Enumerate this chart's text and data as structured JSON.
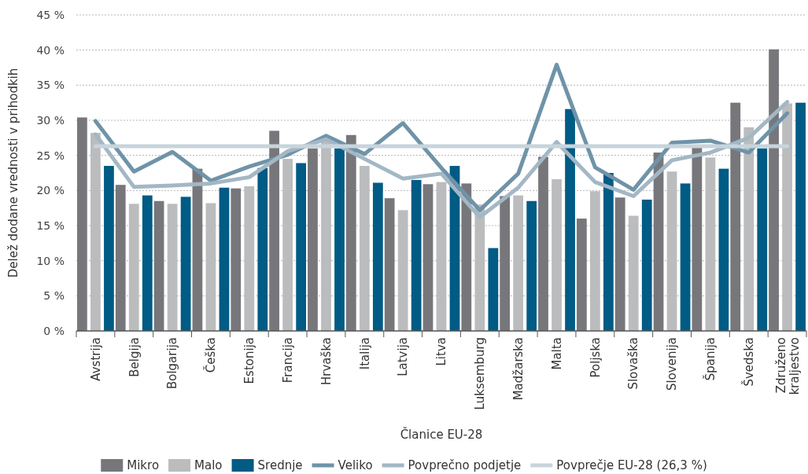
{
  "chart_data": {
    "type": "bar",
    "xlabel": "Članice EU-28",
    "ylabel": "Delež dodane vrednosti v prihodkih",
    "categories": [
      "Avstrija",
      "Belgija",
      "Bolgarija",
      "Češka",
      "Estonija",
      "Francija",
      "Hrvaška",
      "Italija",
      "Latvija",
      "Litva",
      "Luksemburg",
      "Madžarska",
      "Malta",
      "Poljska",
      "Slovaška",
      "Slovenija",
      "Španija",
      "Švedska",
      "Združeno kraljestvo"
    ],
    "series": [
      {
        "name": "Mikro",
        "color": "#77777b",
        "values": [
          30.4,
          20.8,
          18.5,
          23.1,
          20.3,
          28.5,
          26.0,
          27.9,
          18.9,
          20.9,
          21.0,
          19.2,
          24.8,
          16.0,
          19.0,
          25.4,
          26.3,
          32.5,
          40.1
        ]
      },
      {
        "name": "Malo",
        "color": "#bbbcbe",
        "values": [
          28.2,
          18.1,
          18.1,
          18.2,
          20.6,
          24.5,
          27.0,
          23.5,
          17.2,
          21.2,
          18.0,
          19.3,
          21.6,
          19.9,
          16.4,
          22.7,
          24.7,
          29.0,
          32.4
        ]
      },
      {
        "name": "Srednje",
        "color": "#005b85",
        "values": [
          23.5,
          19.3,
          19.1,
          20.4,
          23.2,
          23.9,
          26.0,
          21.1,
          21.5,
          23.5,
          11.8,
          18.5,
          31.6,
          22.5,
          18.7,
          21.0,
          23.1,
          26.0,
          32.5
        ]
      },
      {
        "name": "Veliko",
        "type": "line",
        "color": "#6f93a8",
        "values": [
          29.9,
          22.7,
          25.5,
          21.4,
          23.4,
          25.1,
          27.8,
          25.2,
          29.6,
          23.2,
          17.2,
          22.4,
          37.9,
          23.3,
          20.1,
          26.8,
          27.1,
          25.4,
          31.0
        ]
      },
      {
        "name": "Povprečno podjetje",
        "type": "line",
        "color": "#a3b7c5",
        "values": [
          28.0,
          20.5,
          20.7,
          21.0,
          21.9,
          25.6,
          27.3,
          24.5,
          21.7,
          22.4,
          16.2,
          20.4,
          26.9,
          21.2,
          19.2,
          24.3,
          25.4,
          27.5,
          32.6
        ]
      },
      {
        "name": "Povprečje EU-28 (26,3 %)",
        "type": "line",
        "color": "#c8d4dc",
        "values": [
          26.3,
          26.3,
          26.3,
          26.3,
          26.3,
          26.3,
          26.3,
          26.3,
          26.3,
          26.3,
          26.3,
          26.3,
          26.3,
          26.3,
          26.3,
          26.3,
          26.3,
          26.3,
          26.3
        ]
      }
    ],
    "ylim": [
      0,
      45
    ],
    "yticks": [
      {
        "value": 0,
        "label": "0 %"
      },
      {
        "value": 5,
        "label": "5 %"
      },
      {
        "value": 10,
        "label": "10 %"
      },
      {
        "value": 15,
        "label": "15 %"
      },
      {
        "value": 20,
        "label": "20 %"
      },
      {
        "value": 25,
        "label": "25 %"
      },
      {
        "value": 30,
        "label": "30 %"
      },
      {
        "value": 35,
        "label": "35 %"
      },
      {
        "value": 40,
        "label": "40 %"
      },
      {
        "value": 45,
        "label": "45 %"
      }
    ],
    "grid": "y",
    "legend": "bottom",
    "line_style": "solid",
    "marker": "none"
  }
}
